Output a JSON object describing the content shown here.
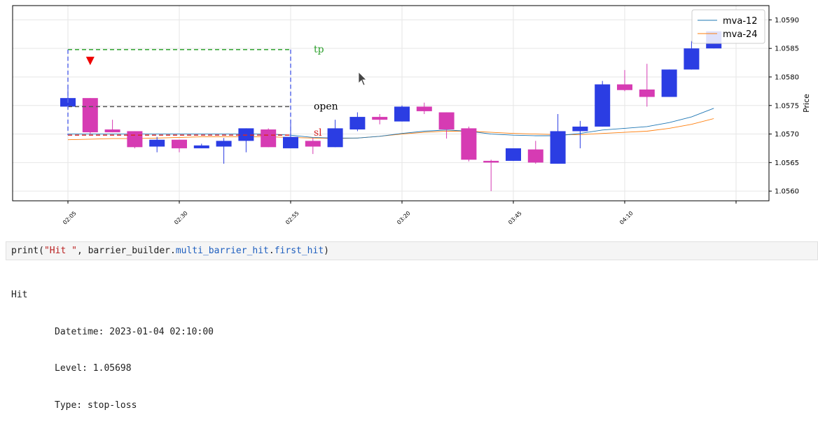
{
  "colors": {
    "bull": "#2b3de3",
    "bear": "#d63bb3",
    "mva12": "#1f77b4",
    "mva24": "#ff7f0e",
    "tp": "#2ca02c",
    "sl": "#d62728",
    "open": "#555555",
    "box": "#5b6bea",
    "marker": "#ee0000"
  },
  "chart_data": {
    "type": "candlestick",
    "ylabel": "Price",
    "ylim": [
      1.05583,
      1.05925
    ],
    "yticks": [
      "1.0560",
      "1.0565",
      "1.0570",
      "1.0575",
      "1.0580",
      "1.0585",
      "1.0590"
    ],
    "xticks": [
      "02:05",
      "02:30",
      "02:55",
      "03:20",
      "03:45",
      "04:10"
    ],
    "legend": {
      "position": "top-right",
      "entries": [
        "mva-12",
        "mva-24"
      ]
    },
    "grid": true,
    "candles": [
      {
        "t": "02:05",
        "o": 1.05748,
        "h": 1.05785,
        "l": 1.05748,
        "c": 1.05763
      },
      {
        "t": "02:10",
        "o": 1.05763,
        "h": 1.05763,
        "l": 1.057,
        "c": 1.05703
      },
      {
        "t": "02:15",
        "o": 1.05708,
        "h": 1.05725,
        "l": 1.05703,
        "c": 1.05703
      },
      {
        "t": "02:20",
        "o": 1.05705,
        "h": 1.05705,
        "l": 1.05675,
        "c": 1.05677
      },
      {
        "t": "02:25",
        "o": 1.05678,
        "h": 1.05695,
        "l": 1.05668,
        "c": 1.0569
      },
      {
        "t": "02:30",
        "o": 1.0569,
        "h": 1.0569,
        "l": 1.05668,
        "c": 1.05675
      },
      {
        "t": "02:35",
        "o": 1.05675,
        "h": 1.05683,
        "l": 1.05675,
        "c": 1.0568
      },
      {
        "t": "02:40",
        "o": 1.05678,
        "h": 1.05693,
        "l": 1.05648,
        "c": 1.05688
      },
      {
        "t": "02:45",
        "o": 1.05688,
        "h": 1.0571,
        "l": 1.05668,
        "c": 1.0571
      },
      {
        "t": "02:50",
        "o": 1.05708,
        "h": 1.0571,
        "l": 1.05677,
        "c": 1.05677
      },
      {
        "t": "02:55",
        "o": 1.05675,
        "h": 1.05718,
        "l": 1.05675,
        "c": 1.05695
      },
      {
        "t": "03:00",
        "o": 1.05688,
        "h": 1.05693,
        "l": 1.05665,
        "c": 1.05678
      },
      {
        "t": "03:05",
        "o": 1.05677,
        "h": 1.05725,
        "l": 1.05677,
        "c": 1.0571
      },
      {
        "t": "03:10",
        "o": 1.05708,
        "h": 1.05738,
        "l": 1.05705,
        "c": 1.0573
      },
      {
        "t": "03:15",
        "o": 1.0573,
        "h": 1.05735,
        "l": 1.05717,
        "c": 1.05725
      },
      {
        "t": "03:20",
        "o": 1.05722,
        "h": 1.0575,
        "l": 1.05722,
        "c": 1.05748
      },
      {
        "t": "03:25",
        "o": 1.05748,
        "h": 1.05755,
        "l": 1.05735,
        "c": 1.0574
      },
      {
        "t": "03:30",
        "o": 1.05738,
        "h": 1.05738,
        "l": 1.05692,
        "c": 1.05708
      },
      {
        "t": "03:35",
        "o": 1.0571,
        "h": 1.05713,
        "l": 1.05652,
        "c": 1.05655
      },
      {
        "t": "03:40",
        "o": 1.05653,
        "h": 1.05655,
        "l": 1.056,
        "c": 1.0565
      },
      {
        "t": "03:45",
        "o": 1.05653,
        "h": 1.05675,
        "l": 1.05653,
        "c": 1.05675
      },
      {
        "t": "03:50",
        "o": 1.05673,
        "h": 1.05688,
        "l": 1.05648,
        "c": 1.0565
      },
      {
        "t": "03:55",
        "o": 1.05648,
        "h": 1.05735,
        "l": 1.05648,
        "c": 1.05705
      },
      {
        "t": "04:00",
        "o": 1.05705,
        "h": 1.05723,
        "l": 1.05675,
        "c": 1.05713
      },
      {
        "t": "04:05",
        "o": 1.05713,
        "h": 1.05793,
        "l": 1.05713,
        "c": 1.05787
      },
      {
        "t": "04:10",
        "o": 1.05787,
        "h": 1.05812,
        "l": 1.05775,
        "c": 1.05777
      },
      {
        "t": "04:15",
        "o": 1.05778,
        "h": 1.05823,
        "l": 1.05748,
        "c": 1.05765
      },
      {
        "t": "04:20",
        "o": 1.05765,
        "h": 1.05813,
        "l": 1.05765,
        "c": 1.05813
      },
      {
        "t": "04:25",
        "o": 1.05813,
        "h": 1.05863,
        "l": 1.05813,
        "c": 1.0585
      },
      {
        "t": "04:30",
        "o": 1.0585,
        "h": 1.0588,
        "l": 1.0585,
        "c": 1.0588
      }
    ],
    "mva12": [
      1.057,
      1.057,
      1.057,
      1.057,
      1.057,
      1.057,
      1.057,
      1.057,
      1.057,
      1.057,
      1.05698,
      1.05694,
      1.05693,
      1.05693,
      1.05696,
      1.05701,
      1.05705,
      1.05707,
      1.05705,
      1.057,
      1.05698,
      1.05697,
      1.05697,
      1.05701,
      1.05707,
      1.0571,
      1.05713,
      1.0572,
      1.0573,
      1.05745
    ],
    "mva24": [
      1.0569,
      1.05691,
      1.05692,
      1.05692,
      1.05693,
      1.05694,
      1.05695,
      1.05695,
      1.05695,
      1.05695,
      1.05694,
      1.05693,
      1.05692,
      1.05693,
      1.05696,
      1.057,
      1.05703,
      1.05705,
      1.05705,
      1.05703,
      1.05701,
      1.057,
      1.05699,
      1.05699,
      1.05701,
      1.05703,
      1.05705,
      1.0571,
      1.05717,
      1.05727
    ],
    "barriers": {
      "tp": 1.05848,
      "open": 1.05748,
      "sl": 1.05698,
      "start": "02:05",
      "end": "02:55",
      "tp_label": "tp",
      "open_label": "open",
      "sl_label": "sl",
      "hit_marker_time": "02:10",
      "hit_marker_price": 1.05828
    }
  },
  "code": {
    "func": "print(",
    "str": "\"Hit \"",
    "sep": ", barrier_builder.",
    "attr1": "multi_barrier_hit",
    "dot": ".",
    "attr2": "first_hit",
    "close": ")"
  },
  "output": {
    "line1": "Hit",
    "line2": "Datetime: 2023-01-04 02:10:00",
    "line3": "Level: 1.05698",
    "line4": "Type: stop-loss"
  }
}
